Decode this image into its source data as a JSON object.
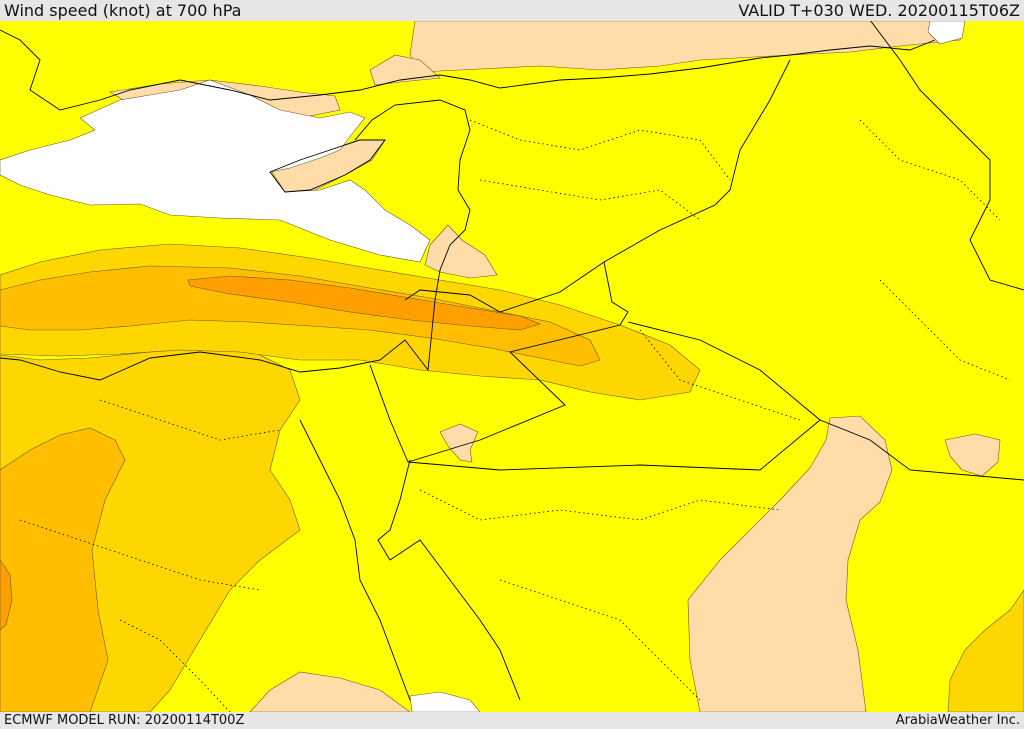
{
  "header": {
    "title": "Wind speed (knot) at 700 hPa",
    "valid": "VALID T+030 WED. 20200115T06Z"
  },
  "footer": {
    "model_run": "ECMWF MODEL RUN: 20200114T00Z",
    "credit": "ArabiaWeather Inc."
  },
  "map": {
    "colors": {
      "sea_white": "#ffffff",
      "band_light": "#ffdca8",
      "band_yellow": "#ffff00",
      "band_gold": "#ffd700",
      "band_orange_light": "#ffbf00",
      "band_orange": "#ff9f00",
      "band_deep_orange": "#ff8000",
      "border_line": "#000000"
    }
  }
}
